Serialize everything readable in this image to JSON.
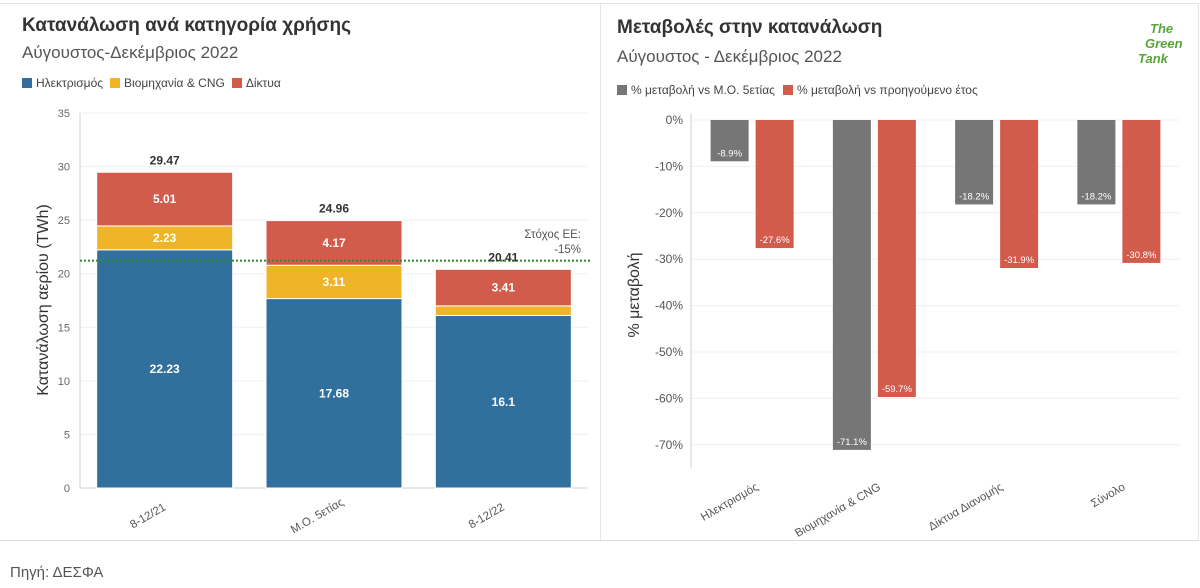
{
  "chart_data": [
    {
      "type": "bar",
      "stacked": true,
      "title": "Κατανάλωση ανά κατηγορία χρήσης",
      "subtitle": "Αύγουστος-Δεκέμβριος 2022",
      "categories": [
        "8-12/21",
        "Μ.Ο. 5ετίας",
        "8-12/22"
      ],
      "series": [
        {
          "name": "Ηλεκτρισμός",
          "color": "#31709c",
          "values": [
            22.23,
            17.68,
            16.1
          ],
          "data_labels": [
            "22.23",
            "17.68",
            "16.1"
          ]
        },
        {
          "name": "Βιομηχανία & CNG",
          "color": "#f0b428",
          "values": [
            2.23,
            3.11,
            0.9
          ],
          "data_labels": [
            "2.23",
            "3.11",
            ""
          ]
        },
        {
          "name": "Δίκτυα",
          "color": "#d15c4b",
          "values": [
            5.01,
            4.17,
            3.41
          ],
          "data_labels": [
            "5.01",
            "4.17",
            "3.41"
          ]
        }
      ],
      "totals": [
        "29.47",
        "24.96",
        "20.41"
      ],
      "xlabel": "",
      "ylabel": "Κατανάλωση αερίου (TWh)",
      "ylim": [
        0,
        35
      ],
      "yticks": [
        0,
        5,
        10,
        15,
        20,
        25,
        30,
        35
      ],
      "reference_line": {
        "value": 21.22,
        "label": [
          "Στόχος ΕΕ:",
          "-15%"
        ],
        "color": "#2e8b2e"
      },
      "grid": true,
      "legend": "top-left"
    },
    {
      "type": "bar",
      "title": "Μεταβολές στην κατανάλωση",
      "subtitle": "Αύγουστος - Δεκέμβριος 2022",
      "categories": [
        "Ηλεκτρισμός",
        "Βιομηχανία & CNG",
        "Δίκτυα Διανομής",
        "Σύνολο"
      ],
      "series": [
        {
          "name": "% μεταβολή vs Μ.Ο. 5ετίας",
          "color": "#767676",
          "values": [
            -8.9,
            -71.1,
            -18.2,
            -18.2
          ]
        },
        {
          "name": "% μεταβολή vs προηγούμενο έτος",
          "color": "#d15c4b",
          "values": [
            -27.6,
            -59.7,
            -31.9,
            -30.8
          ]
        }
      ],
      "xlabel": "",
      "ylabel": "% μεταβολή",
      "ylim": [
        -75,
        0
      ],
      "yticks": [
        0,
        -10,
        -20,
        -30,
        -40,
        -50,
        -60,
        -70
      ],
      "value_suffix": "%",
      "grid": true,
      "legend": "top-left"
    }
  ],
  "logo": {
    "line1": "The",
    "line2": "Green",
    "line3": "Tank"
  },
  "source": "Πηγή: ΔΕΣΦΑ"
}
